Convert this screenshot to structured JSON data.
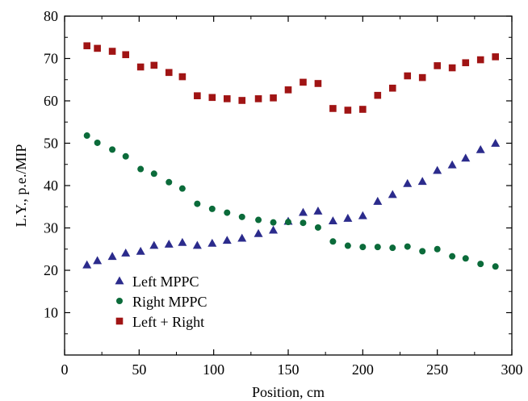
{
  "chart_data": {
    "type": "scatter",
    "title": "",
    "xlabel": "Position, cm",
    "ylabel": "L.Y., p.e./MIP",
    "xlim": [
      0,
      300
    ],
    "ylim": [
      0,
      80
    ],
    "xticks": [
      0,
      50,
      100,
      150,
      200,
      250,
      300
    ],
    "yticks": [
      10,
      20,
      30,
      40,
      50,
      60,
      70,
      80
    ],
    "grid": false,
    "legend_position": "bottom-left",
    "x": [
      15,
      22,
      32,
      41,
      51,
      60,
      70,
      79,
      89,
      99,
      109,
      119,
      130,
      140,
      150,
      160,
      170,
      180,
      190,
      200,
      210,
      220,
      230,
      240,
      250,
      260,
      269,
      279,
      289
    ],
    "series": [
      {
        "name": "Left MPPC",
        "marker": "triangle",
        "color": "#2B2B8C",
        "values": [
          21.3,
          22.3,
          23.3,
          24.1,
          24.5,
          25.9,
          26.2,
          26.6,
          25.9,
          26.4,
          27.1,
          27.6,
          28.7,
          29.5,
          31.6,
          33.7,
          34.0,
          31.7,
          32.3,
          32.9,
          36.3,
          37.9,
          40.5,
          41.0,
          43.6,
          44.9,
          46.5,
          48.5,
          50.0
        ]
      },
      {
        "name": "Right MPPC",
        "marker": "circle",
        "color": "#0B6B3A",
        "values": [
          51.8,
          50.1,
          48.5,
          46.9,
          43.9,
          42.8,
          40.8,
          39.3,
          35.7,
          34.5,
          33.6,
          32.6,
          31.9,
          31.3,
          31.4,
          31.2,
          30.1,
          26.8,
          25.8,
          25.5,
          25.5,
          25.3,
          25.6,
          24.5,
          25.0,
          23.3,
          22.8,
          21.5,
          20.9
        ]
      },
      {
        "name": "Left + Right",
        "marker": "square",
        "color": "#A01414",
        "values": [
          73.0,
          72.4,
          71.7,
          70.9,
          68.0,
          68.4,
          66.7,
          65.7,
          61.2,
          60.8,
          60.5,
          60.1,
          60.5,
          60.7,
          62.6,
          64.4,
          64.1,
          58.2,
          57.8,
          58.0,
          61.3,
          63.0,
          65.9,
          65.5,
          68.3,
          67.8,
          69.0,
          69.7,
          70.4
        ]
      }
    ]
  }
}
